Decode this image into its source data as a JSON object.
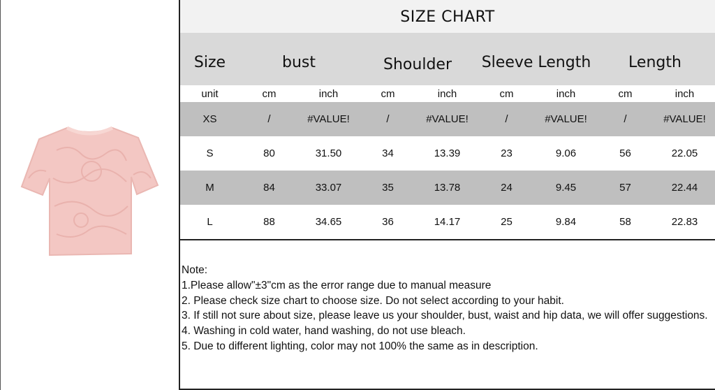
{
  "title": "SIZE CHART",
  "headers": [
    "Size",
    "bust",
    "Shoulder",
    "Sleeve Length",
    "Length"
  ],
  "units": [
    "unit",
    "cm",
    "inch",
    "cm",
    "inch",
    "cm",
    "inch",
    "cm",
    "inch"
  ],
  "rows": [
    [
      "XS",
      "/",
      "#VALUE!",
      "/",
      "#VALUE!",
      "/",
      "#VALUE!",
      "/",
      "#VALUE!"
    ],
    [
      "S",
      "80",
      "31.50",
      "34",
      "13.39",
      "23",
      "9.06",
      "56",
      "22.05"
    ],
    [
      "M",
      "84",
      "33.07",
      "35",
      "13.78",
      "24",
      "9.45",
      "57",
      "22.44"
    ],
    [
      "L",
      "88",
      "34.65",
      "36",
      "14.17",
      "25",
      "9.84",
      "58",
      "22.83"
    ]
  ],
  "notes": [
    " Note:",
    "1.Please allow\"±3\"cm as the error range due to manual measure",
    "2. Please check size chart to choose size. Do not select according to your habit.",
    "3. If still not sure about size, please leave us your shoulder, bust, waist and hip data, we will offer suggestions.",
    "4. Washing in cold water, hand washing, do not use bleach.",
    "5. Due to different lighting, color may not 100% the same as in description."
  ],
  "product_image": "pink-lace-knit-tshirt",
  "colors": {
    "shirt": "#f3c7c3",
    "header": "#d9d9d9",
    "row_gray": "#bfbfbf"
  }
}
